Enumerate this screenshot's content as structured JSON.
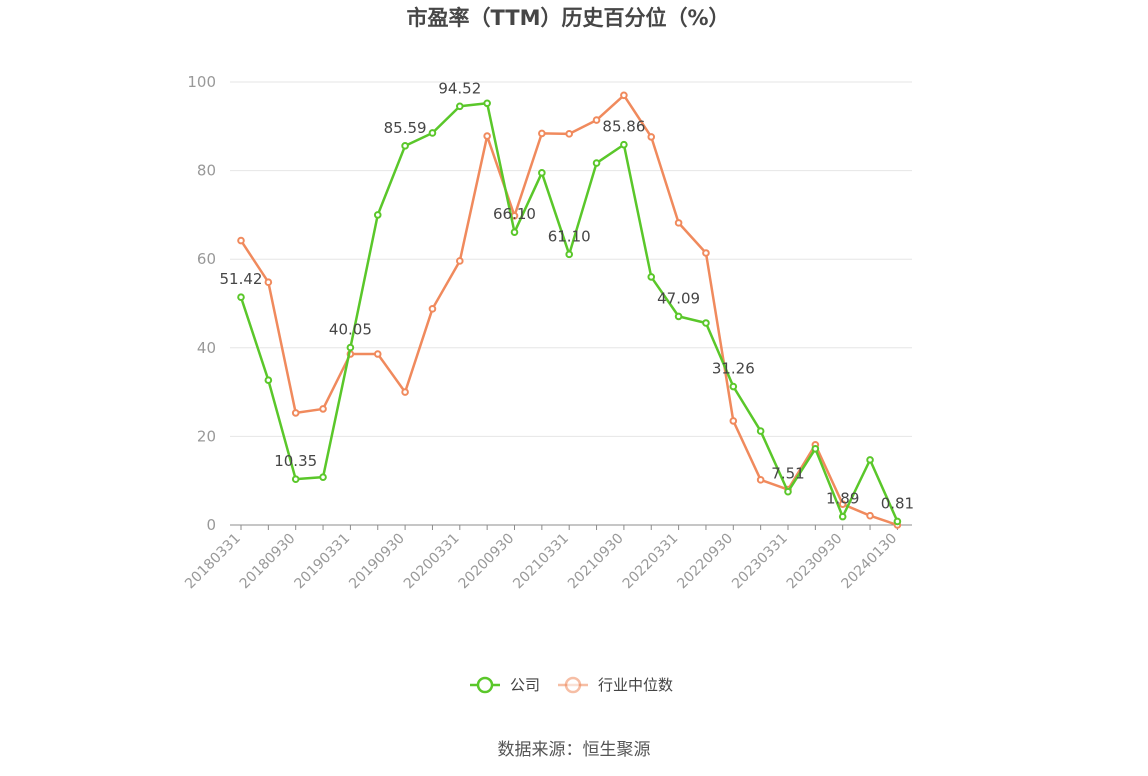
{
  "chart_data": {
    "type": "line",
    "title": "市盈率（TTM）历史百分位（%）",
    "ylim": [
      0,
      100
    ],
    "yticks": [
      0,
      20,
      40,
      60,
      80,
      100
    ],
    "grid": true,
    "legend_position": "bottom-center",
    "x_tick_labels": [
      "20180331",
      "20180930",
      "20190331",
      "20190930",
      "20200331",
      "20200930",
      "20210331",
      "20210930",
      "20220331",
      "20220930",
      "20230331",
      "20230930",
      "20240130"
    ],
    "series": [
      {
        "name": "公司",
        "color": "#5ac72a",
        "values": [
          51.42,
          32.7,
          10.35,
          10.8,
          40.05,
          70.0,
          85.59,
          88.5,
          94.52,
          95.2,
          66.1,
          79.5,
          61.1,
          81.7,
          85.86,
          56.0,
          47.09,
          45.6,
          31.26,
          21.2,
          7.51,
          17.2,
          1.89,
          14.7,
          0.81
        ],
        "labels": {
          "0": "51.42",
          "2": "10.35",
          "4": "40.05",
          "6": "85.59",
          "8": "94.52",
          "10": "66.10",
          "12": "61.10",
          "14": "85.86",
          "16": "47.09",
          "18": "31.26",
          "20": "7.51",
          "22": "1.89",
          "24": "0.81"
        }
      },
      {
        "name": "行业中位数",
        "color": "#f08a5d",
        "values": [
          64.2,
          54.8,
          25.3,
          26.2,
          38.6,
          38.6,
          30.0,
          48.8,
          59.6,
          87.8,
          69.8,
          88.4,
          88.3,
          91.4,
          97.0,
          87.6,
          68.2,
          61.4,
          23.5,
          10.2,
          8.0,
          18.1,
          4.7,
          2.1,
          0.0
        ]
      }
    ]
  },
  "source_text": "数据来源：恒生聚源"
}
